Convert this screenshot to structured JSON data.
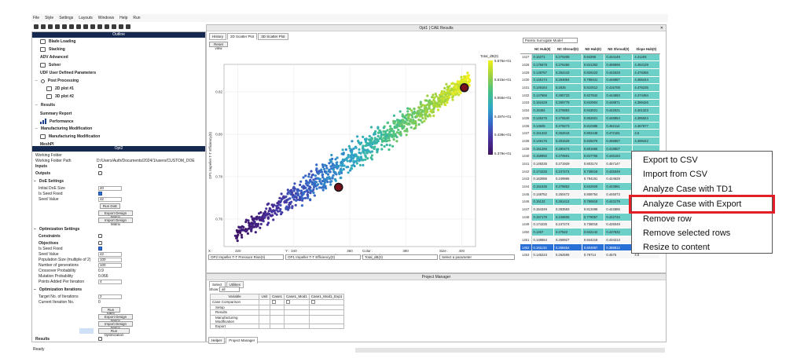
{
  "menu": [
    "File",
    "Style",
    "Settings",
    "Layouts",
    "Windows",
    "Help",
    "Run"
  ],
  "left_panel": {
    "outline_title": "Outline",
    "outline_items": [
      {
        "label": "Blade Loading",
        "icon": "blade-icon"
      },
      {
        "label": "Stacking",
        "icon": "stacking-icon"
      },
      {
        "label": "ADV Advanced",
        "icon": "adv-icon"
      },
      {
        "label": "Solver",
        "icon": "solver-icon"
      },
      {
        "label": "UDF User Defined Parameters",
        "icon": "udf-icon"
      },
      {
        "label": "Post Processing",
        "icon": "gear-icon"
      },
      {
        "label": "2D plot #1",
        "icon": "plot-icon"
      },
      {
        "label": "3D plot #2",
        "icon": "plot3d-icon"
      },
      {
        "label": "Results",
        "icon": ""
      },
      {
        "label": "Summary Report",
        "icon": ""
      },
      {
        "label": "Performance",
        "icon": "chart-icon"
      },
      {
        "label": "Manufacturing Modification",
        "icon": ""
      },
      {
        "label": "Manufacturing Modification",
        "icon": "tool-icon"
      },
      {
        "label": "MeshPI",
        "icon": ""
      }
    ],
    "opt_title": "Opt2",
    "working_folder_label": "Working Folder",
    "working_folder_path_label": "Working Folder Path",
    "working_folder_path": "D:/Users/Auth/Documents/2024/1/users/CUSTOM_DOE",
    "inputs_label": "Inputs",
    "outputs_label": "Outputs",
    "doe_settings_label": "DoE Settings",
    "initial_doe_size_label": "Initial DoE Size",
    "initial_doe_size": "40",
    "is_seed_fixed_label": "Is Seed Fixed",
    "seed_value_label": "Seed Value",
    "seed_value": "42",
    "run_doe": "Run DoE",
    "export_design_matrix": "Export Design Matrix",
    "import_design_matrix": "Import Design Matrix",
    "optimization_settings_label": "Optimization Settings",
    "constraints_label": "Constraints",
    "objectives_label": "Objectives",
    "is_seed_fixed2_label": "Is Seed Fixed",
    "seed_value2_label": "Seed Value",
    "seed_value2": "42",
    "population_size_label": "Population Size (multiple of 2)",
    "population_size": "100",
    "num_generations_label": "Number of generations",
    "num_generations": "100",
    "crossover_label": "Crossover Probability",
    "crossover": "0.9",
    "mutation_label": "Mutation Probability",
    "mutation": "0.066",
    "points_added_label": "Points Added Per Iteration",
    "points_added": "4",
    "opt_iterations_label": "Optimization Iterations",
    "target_iterations_label": "Target No. of Iterations",
    "target_iterations": "2",
    "current_iteration_label": "Current Iteration No.",
    "current_iteration": "0",
    "run_mrs": "Run MRS",
    "export_design_matrix2": "Export Design Matrix",
    "import_design_matrix2": "Import Design Matrix",
    "run_optimization": "Run Optimization",
    "results_label": "Results"
  },
  "center": {
    "title": "Opt1 | CAE Results",
    "tabs": [
      "History",
      "2D Scatter Plot",
      "3D Scatter Plot"
    ],
    "reset_view": "Reset view",
    "selectors": {
      "x_label": "X :",
      "x_value": "OP2 Impeller T-T Pressure Rise(0)",
      "y_label": "Y :",
      "y_value": "OP1 Impeller T-T Efficiency(0)",
      "color_label": "Color :",
      "color_value": "Total_dB(0)",
      "size_label": "Size :",
      "size_value": "Select a parameter"
    },
    "highlight_color": "#e21f26"
  },
  "chart_data": {
    "type": "scatter",
    "title": "",
    "xlabel": "OP2 Impeller T-T Pressure Rise(0) [Pa]",
    "ylabel": "OP1 Impeller T-T Efficiency(0)",
    "x_ticks": [
      "320",
      "340",
      "360",
      "380",
      "400"
    ],
    "y_ticks": [
      "0.82",
      "0.80",
      "0.78",
      "0.76"
    ],
    "xlim": [
      315,
      405
    ],
    "ylim": [
      0.747,
      0.833
    ],
    "colorbar": {
      "title": "Total_dB(0)",
      "ticks": [
        "5.675e+01",
        "5.615e+01",
        "5.556e+01",
        "5.497e+01",
        "5.438e+01",
        "5.379e+01"
      ],
      "colors": [
        "#f2f01e",
        "#9ad040",
        "#45c08a",
        "#2fa8c7",
        "#3568c8",
        "#4a2f9a",
        "#3d1466"
      ]
    },
    "trend": {
      "x0": 319,
      "x1": 403,
      "y0": 0.752,
      "y1": 0.826,
      "spread": 0.007
    },
    "n_points": 1100,
    "highlighted_points": [
      {
        "x": 401,
        "y": 0.822
      },
      {
        "x": 356,
        "y": 0.775
      }
    ]
  },
  "table": {
    "model_select": "Pareto Surrogate Model",
    "columns": [
      "",
      "NC Hub(0)",
      "NC Shroud(0)",
      "ND Hub(0)",
      "ND Shroud(0)",
      "Slope Hub(0)"
    ],
    "rows": [
      [
        "1427",
        "0.16271",
        "0.270208",
        "0.84296",
        "0.444149",
        "4.41203"
      ],
      [
        "1428",
        "0.175678",
        "0.276465",
        "0.841363",
        "0.469898",
        "4.494129"
      ],
      [
        "1429",
        "0.148767",
        "0.252443",
        "0.826423",
        "0.442528",
        "4.476366"
      ],
      [
        "1430",
        "0.145174",
        "0.264864",
        "0.798441",
        "0.446987",
        "4.466444"
      ],
      [
        "1431",
        "0.149164",
        "0.2835",
        "0.810012",
        "0.415708",
        "4.476235"
      ],
      [
        "1432",
        "0.147666",
        "0.280733",
        "0.827842",
        "0.444683",
        "4.474494"
      ],
      [
        "1433",
        "0.152429",
        "0.269779",
        "0.842904",
        "0.448871",
        "4.396426"
      ],
      [
        "1434",
        "0.15484",
        "0.276883",
        "0.843021",
        "0.442021",
        "4.401323"
      ],
      [
        "1435",
        "0.145275",
        "0.275540",
        "0.852601",
        "0.448854",
        "4.395624"
      ],
      [
        "1436",
        "0.14925",
        "0.279273",
        "0.810386",
        "0.462114",
        "4.467677"
      ],
      [
        "1437",
        "0.151332",
        "0.262618",
        "0.802448",
        "0.472181",
        "4.5"
      ],
      [
        "1438",
        "0.149176",
        "0.281529",
        "0.845076",
        "0.468867",
        "4.498442"
      ],
      [
        "1439",
        "0.161266",
        "0.280474",
        "0.801866",
        "0.418807",
        ""
      ],
      [
        "1440",
        "0.158992",
        "0.270501",
        "0.847755",
        "0.446163",
        ""
      ],
      [
        "1441",
        "0.149235",
        "0.271929",
        "0.803174",
        "0.457147",
        ""
      ],
      [
        "1442",
        "0.174225",
        "0.247274",
        "0.738018",
        "0.425049",
        ""
      ],
      [
        "1443",
        "0.163086",
        "0.249996",
        "0.794191",
        "0.424629",
        ""
      ],
      [
        "1444",
        "0.151536",
        "0.278852",
        "0.842929",
        "0.443861",
        ""
      ],
      [
        "1445",
        "0.148752",
        "0.250472",
        "0.808754",
        "0.445073",
        ""
      ],
      [
        "1446",
        "0.15132",
        "0.261412",
        "0.786918",
        "0.443179",
        ""
      ],
      [
        "1447",
        "0.154349",
        "0.283593",
        "0.813498",
        "0.442886",
        ""
      ],
      [
        "1448",
        "0.157179",
        "0.249605",
        "0.778057",
        "0.442742",
        ""
      ],
      [
        "1449",
        "0.174225",
        "0.247274",
        "0.738018",
        "0.425049",
        ""
      ],
      [
        "1450",
        "0.1467",
        "0.27542",
        "0.842142",
        "0.437632",
        ""
      ],
      [
        "1451",
        "0.148664",
        "0.258927",
        "0.844218",
        "0.434213",
        ""
      ],
      [
        "1452",
        "0.161134",
        "0.268454",
        "0.804967",
        "0.388812",
        ""
      ],
      [
        "1453",
        "0.145223",
        "0.262595",
        "0.78714",
        "0.4575",
        "4.5"
      ]
    ],
    "cyan_rows": 14,
    "selected_row": 25
  },
  "context_menu": [
    "Export to CSV",
    "Import from CSV",
    "Analyze Case with TD1",
    "Analyze Case with Export",
    "Remove row",
    "Remove selected rows",
    "Resize to content"
  ],
  "project_manager": {
    "title": "Project Manager",
    "tabs": [
      "Select",
      "Utilities"
    ],
    "show_label": "Show:",
    "show_value": "all",
    "columns": [
      "Variable",
      "Unit",
      "Case1",
      "Case1_Mod1",
      "Case1_Mod1_Exp1"
    ],
    "rows": [
      "Case Comparison",
      "Setup",
      "Results",
      "Manufacturing Modification",
      "Export"
    ],
    "bottom_tabs": [
      "Helper",
      "Project Manager"
    ]
  },
  "status": "Ready"
}
